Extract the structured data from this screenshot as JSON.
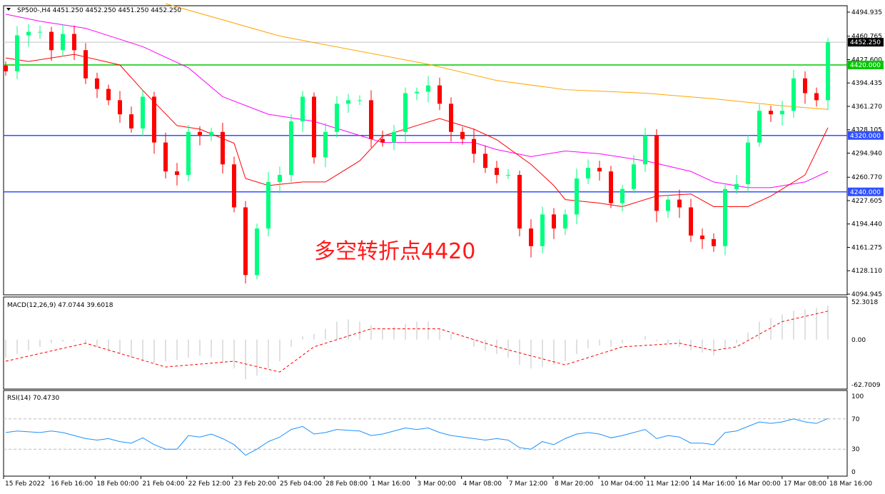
{
  "chart_data": {
    "type": "candlestick",
    "title": "SP500-,H4  4451.250 4452.250 4451.250 4452.250",
    "symbol": "SP500-,H4",
    "ohlc_header": [
      "4451.250",
      "4452.250",
      "4451.250",
      "4452.250"
    ],
    "annotation": "多空转折点4420",
    "colors": {
      "bull": "#00ff7f",
      "bear": "#ff0000",
      "ma_fast": "#ff0000",
      "ma_mid": "#ff00ff",
      "ma_slow": "#ffa500",
      "level_green": "#00c800",
      "level_blue": "#3050ff",
      "macd_hist": "#c0c0c0",
      "macd_signal": "#ff0000",
      "rsi": "#1e90ff"
    },
    "price_axis": {
      "ylim": [
        4094.945,
        4494.935
      ],
      "ticks": [
        "4494.935",
        "4460.765",
        "4427.600",
        "4394.435",
        "4361.270",
        "4328.105",
        "4294.940",
        "4260.770",
        "4227.605",
        "4194.440",
        "4161.275",
        "4128.110",
        "4094.945"
      ]
    },
    "current_price": {
      "value": 4452.25,
      "label": "4452.250"
    },
    "levels": [
      {
        "value": 4420,
        "label": "4420.000",
        "color": "#00c800"
      },
      {
        "value": 4320,
        "label": "4320.000",
        "color": "#3050ff"
      },
      {
        "value": 4240,
        "label": "4240.000",
        "color": "#3050ff"
      }
    ],
    "closes": [
      4411,
      4462,
      4467,
      4467,
      4441,
      4464,
      4441,
      4401,
      4386,
      4370,
      4350,
      4330,
      4375,
      4310,
      4269,
      4264,
      4325,
      4320,
      4325,
      4279,
      4218,
      4122,
      4188,
      4254,
      4264,
      4340,
      4375,
      4289,
      4325,
      4365,
      4370,
      4370,
      4315,
      4310,
      4325,
      4380,
      4382,
      4391,
      4365,
      4325,
      4315,
      4294,
      4274,
      4264,
      4264,
      4188,
      4163,
      4208,
      4188,
      4208,
      4259,
      4274,
      4269,
      4224,
      4244,
      4279,
      4320,
      4213,
      4229,
      4218,
      4178,
      4173,
      4163,
      4244,
      4251,
      4310,
      4355,
      4350,
      4355,
      4401,
      4380,
      4370,
      4452.25
    ],
    "ma_fast": [
      [
        0,
        4430
      ],
      [
        2,
        4425
      ],
      [
        6,
        4435
      ],
      [
        10,
        4420
      ],
      [
        12,
        4384
      ],
      [
        15,
        4334
      ],
      [
        17,
        4329
      ],
      [
        20,
        4309
      ],
      [
        21,
        4259
      ],
      [
        23,
        4249
      ],
      [
        26,
        4254
      ],
      [
        28,
        4254
      ],
      [
        31,
        4284
      ],
      [
        33,
        4319
      ],
      [
        36,
        4334
      ],
      [
        38,
        4344
      ],
      [
        41,
        4329
      ],
      [
        43,
        4314
      ],
      [
        46,
        4279
      ],
      [
        48,
        4249
      ],
      [
        49,
        4229
      ],
      [
        52,
        4224
      ],
      [
        54,
        4219
      ],
      [
        57,
        4234
      ],
      [
        60,
        4237
      ],
      [
        62,
        4219
      ],
      [
        65,
        4219
      ],
      [
        67,
        4234
      ],
      [
        70,
        4264
      ],
      [
        72,
        4331
      ]
    ],
    "ma_mid": [
      [
        0,
        4492
      ],
      [
        3,
        4482
      ],
      [
        7,
        4472
      ],
      [
        12,
        4446
      ],
      [
        16,
        4416
      ],
      [
        19,
        4375
      ],
      [
        23,
        4350
      ],
      [
        27,
        4340
      ],
      [
        31,
        4320
      ],
      [
        33,
        4310
      ],
      [
        37,
        4310
      ],
      [
        41,
        4310
      ],
      [
        43,
        4300
      ],
      [
        46,
        4290
      ],
      [
        49,
        4298
      ],
      [
        52,
        4294
      ],
      [
        56,
        4284
      ],
      [
        60,
        4269
      ],
      [
        62,
        4254
      ],
      [
        65,
        4246
      ],
      [
        67,
        4246
      ],
      [
        70,
        4254
      ],
      [
        72,
        4269
      ]
    ],
    "ma_slow": [
      [
        14,
        4507
      ],
      [
        24,
        4461
      ],
      [
        37,
        4421
      ],
      [
        43,
        4398
      ],
      [
        49,
        4385
      ],
      [
        56,
        4380
      ],
      [
        62,
        4372
      ],
      [
        68,
        4362
      ],
      [
        72,
        4357
      ]
    ],
    "macd": {
      "label": "MACD(12,26,9) 47.0744 39.6018",
      "ylim": [
        -62.7009,
        52.3018
      ],
      "ticks": [
        "52.3018",
        "0.00",
        "-62.7009"
      ],
      "histogram": [
        -25,
        -20,
        -15,
        -10,
        -5,
        -3,
        -2,
        -5,
        -10,
        -15,
        -20,
        -25,
        -30,
        -32,
        -30,
        -28,
        -25,
        -22,
        -25,
        -32,
        -40,
        -55,
        -50,
        -40,
        -30,
        -10,
        5,
        8,
        15,
        25,
        28,
        25,
        20,
        15,
        18,
        22,
        25,
        25,
        15,
        8,
        0,
        -10,
        -15,
        -20,
        -25,
        -35,
        -40,
        -38,
        -35,
        -30,
        -20,
        -12,
        -8,
        -10,
        -5,
        0,
        5,
        -2,
        -5,
        -10,
        -15,
        -18,
        -22,
        -12,
        -5,
        10,
        25,
        30,
        35,
        40,
        42,
        44,
        47.0744
      ],
      "signal": [
        [
          0,
          -30
        ],
        [
          7,
          -5
        ],
        [
          14,
          -38
        ],
        [
          20,
          -30
        ],
        [
          24,
          -45
        ],
        [
          27,
          -10
        ],
        [
          32,
          15
        ],
        [
          38,
          15
        ],
        [
          43,
          -10
        ],
        [
          49,
          -35
        ],
        [
          54,
          -10
        ],
        [
          59,
          -5
        ],
        [
          62,
          -15
        ],
        [
          64,
          -10
        ],
        [
          68,
          25
        ],
        [
          72,
          39.6018
        ]
      ]
    },
    "rsi": {
      "label": "RSI(14) 70.4730",
      "ylim": [
        0,
        100
      ],
      "ticks": [
        "100",
        "70",
        "30",
        "0"
      ],
      "levels": [
        70,
        30
      ],
      "values": [
        52,
        54,
        53,
        52,
        54,
        52,
        48,
        44,
        42,
        44,
        40,
        38,
        45,
        36,
        30,
        30,
        48,
        46,
        50,
        44,
        36,
        22,
        30,
        40,
        46,
        56,
        60,
        50,
        52,
        56,
        55,
        54,
        48,
        50,
        54,
        58,
        56,
        58,
        52,
        48,
        46,
        44,
        42,
        44,
        42,
        32,
        30,
        40,
        36,
        44,
        50,
        52,
        50,
        45,
        48,
        52,
        56,
        44,
        48,
        46,
        38,
        38,
        36,
        52,
        54,
        60,
        66,
        64,
        66,
        70,
        66,
        64,
        70.473
      ]
    },
    "time_axis": [
      "15 Feb 2022",
      "16 Feb 16:00",
      "18 Feb 00:00",
      "21 Feb 04:00",
      "22 Feb 12:00",
      "23 Feb 20:00",
      "25 Feb 04:00",
      "28 Feb 08:00",
      "1 Mar 16:00",
      "3 Mar 00:00",
      "4 Mar 08:00",
      "7 Mar 12:00",
      "8 Mar 20:00",
      "10 Mar 04:00",
      "11 Mar 12:00",
      "14 Mar 16:00",
      "16 Mar 00:00",
      "17 Mar 08:00",
      "18 Mar 16:00"
    ]
  }
}
